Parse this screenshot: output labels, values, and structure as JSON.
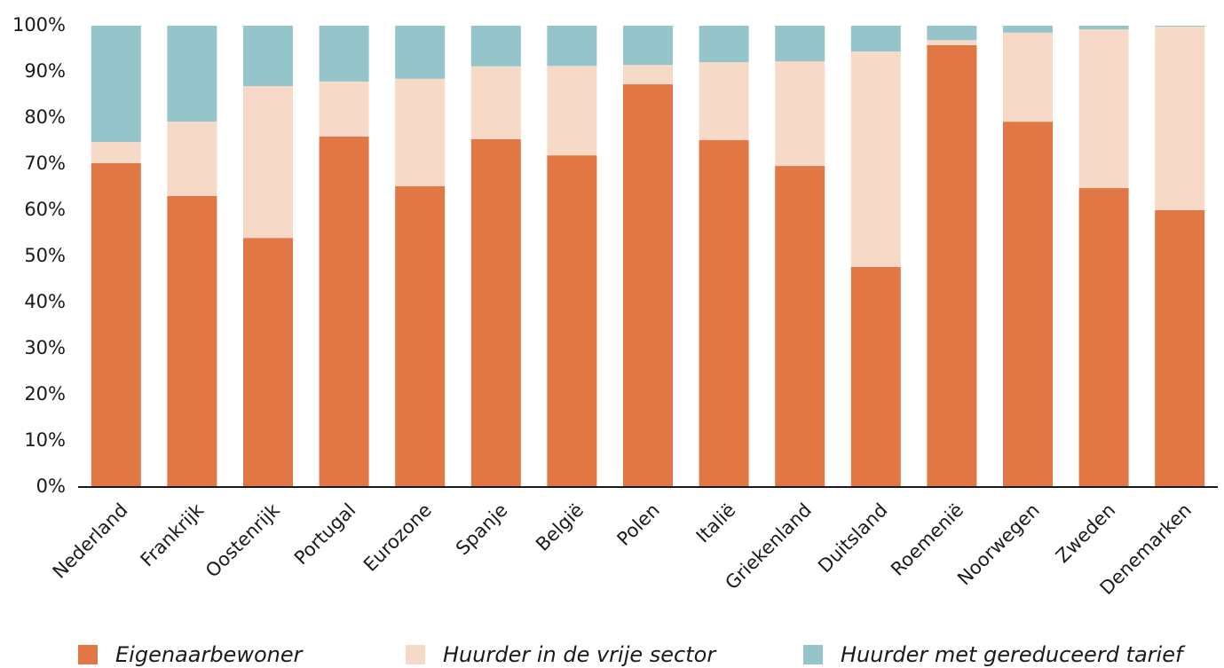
{
  "chart_data": {
    "type": "stacked-bar",
    "categories": [
      "Nederland",
      "Frankrijk",
      "Oostenrijk",
      "Portugal",
      "Eurozone",
      "Spanje",
      "België",
      "Polen",
      "Italië",
      "Griekenland",
      "Duitsland",
      "Roemenië",
      "Noorwegen",
      "Zweden",
      "Denemarken"
    ],
    "series": [
      {
        "name": "Eigenaarbewoner",
        "color": "#e07745",
        "values": [
          70.2,
          63.1,
          54,
          76,
          65.2,
          75.4,
          71.9,
          87.3,
          75.2,
          69.6,
          47.7,
          95.8,
          79.2,
          64.8,
          60
        ]
      },
      {
        "name": "Huurder in de vrije sector",
        "color": "#f6d9c6",
        "values": [
          4.6,
          16.1,
          32.9,
          11.9,
          23.3,
          15.8,
          19.4,
          4.2,
          16.9,
          22.7,
          46.7,
          1.1,
          19.3,
          34.4,
          39.8
        ]
      },
      {
        "name": "Huurder met gereduceerd tarief",
        "color": "#96c4cb",
        "values": [
          25.2,
          20.8,
          13.1,
          12.1,
          11.5,
          8.8,
          8.7,
          8.5,
          7.9,
          7.7,
          5.6,
          3.1,
          1.5,
          0.8,
          0.2
        ]
      }
    ],
    "ylim": [
      0,
      100
    ],
    "yticks": [
      {
        "value": 0,
        "label": "0%"
      },
      {
        "value": 10,
        "label": "10%"
      },
      {
        "value": 20,
        "label": "20%"
      },
      {
        "value": 30,
        "label": "30%"
      },
      {
        "value": 40,
        "label": "40%"
      },
      {
        "value": 50,
        "label": "50%"
      },
      {
        "value": 60,
        "label": "60%"
      },
      {
        "value": 70,
        "label": "70%"
      },
      {
        "value": 80,
        "label": "80%"
      },
      {
        "value": 90,
        "label": "90%"
      },
      {
        "value": 100,
        "label": "100%"
      }
    ],
    "grid": false,
    "legend": "bottom"
  }
}
